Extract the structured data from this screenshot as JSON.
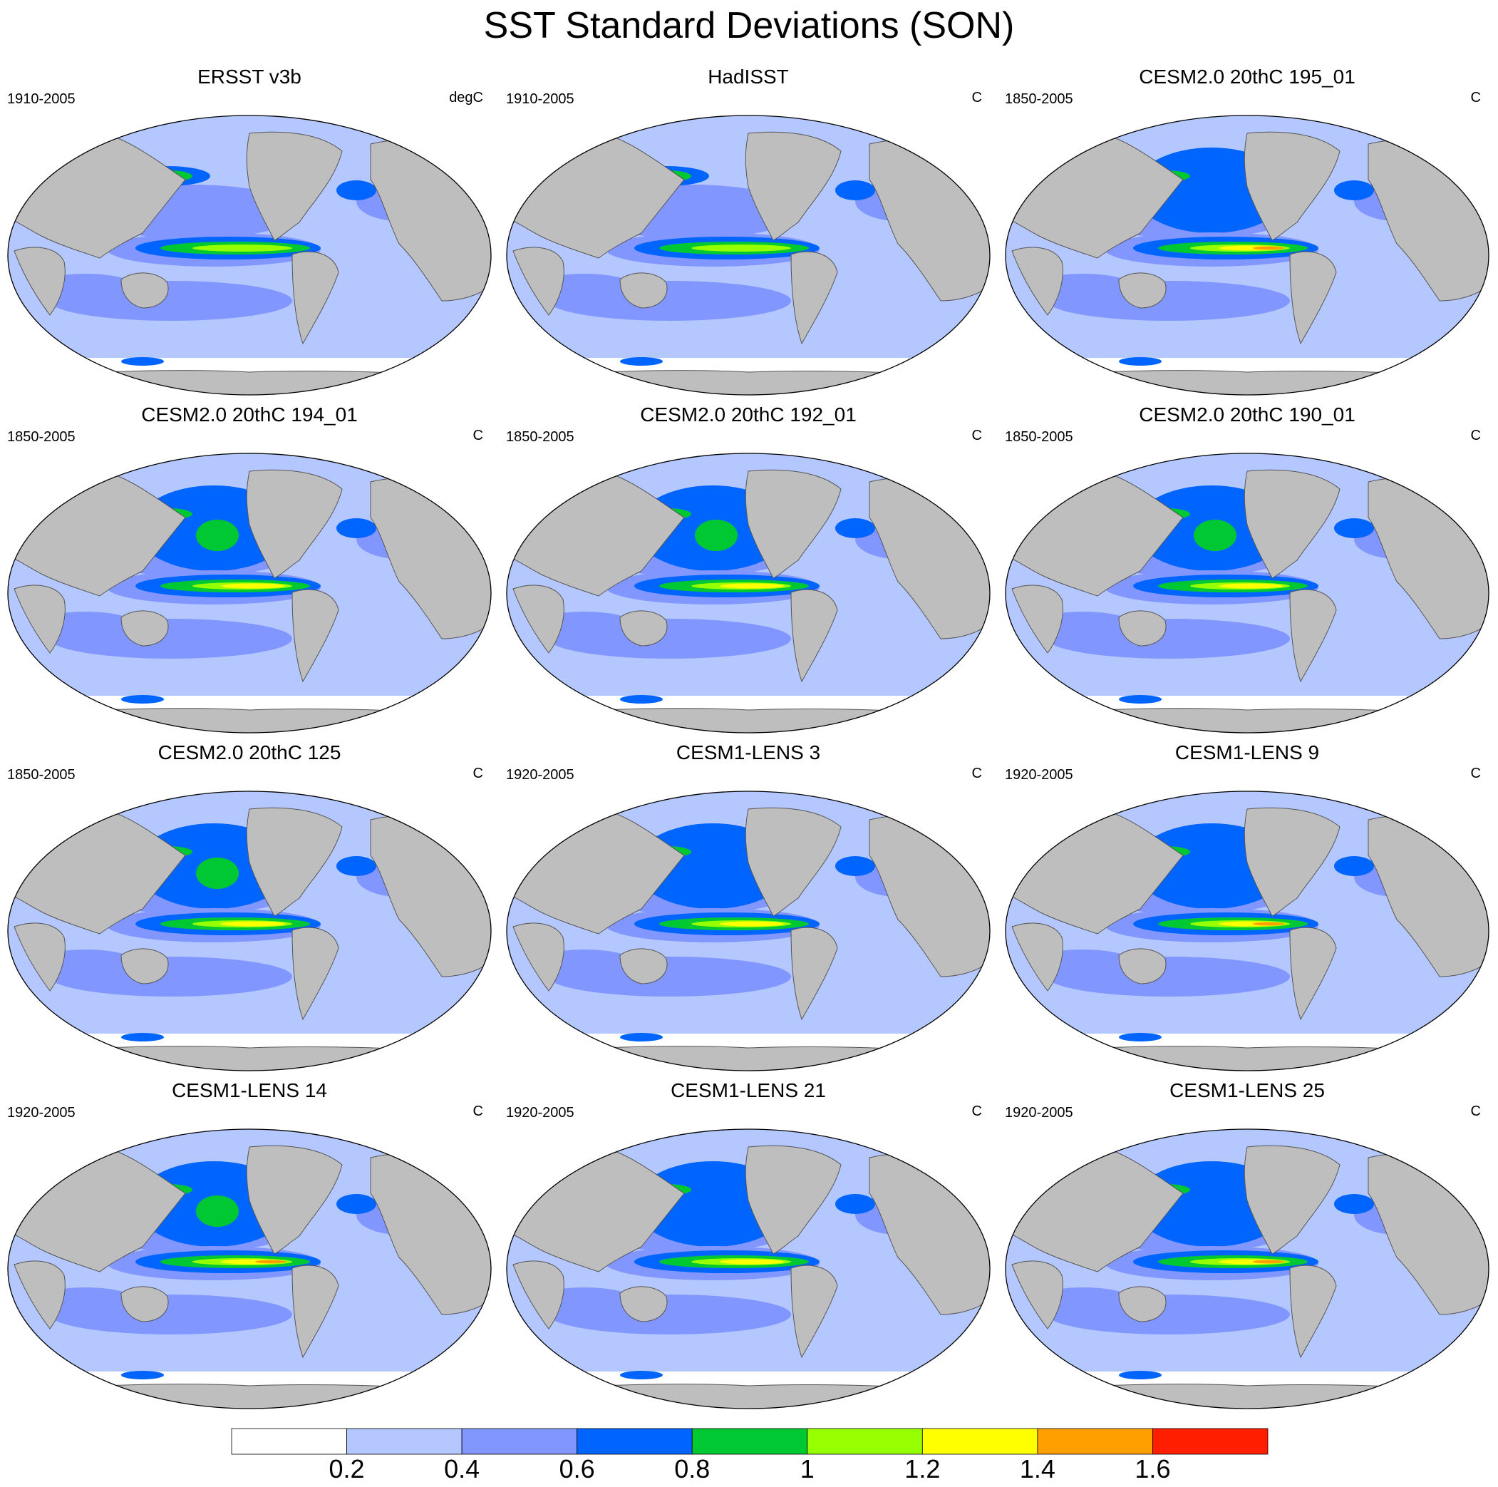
{
  "title": "SST Standard Deviations (SON)",
  "colors": {
    "land": "#bebebe",
    "levels": [
      "#ffffff",
      "#b4c8ff",
      "#8296ff",
      "#0064ff",
      "#00c832",
      "#96ff00",
      "#ffff00",
      "#ffa000",
      "#ff1e00"
    ]
  },
  "panels": [
    {
      "title": "ERSST v3b",
      "period": "1910-2005",
      "units": "degC",
      "nino": 2,
      "north": 1,
      "south": 1
    },
    {
      "title": "HadISST",
      "period": "1910-2005",
      "units": "C",
      "nino": 2,
      "north": 1,
      "south": 1
    },
    {
      "title": "CESM2.0 20thC 195_01",
      "period": "1850-2005",
      "units": "C",
      "nino": 4,
      "north": 2,
      "south": 1
    },
    {
      "title": "CESM2.0 20thC 194_01",
      "period": "1850-2005",
      "units": "C",
      "nino": 3,
      "north": 3,
      "south": 1
    },
    {
      "title": "CESM2.0 20thC 192_01",
      "period": "1850-2005",
      "units": "C",
      "nino": 3,
      "north": 3,
      "south": 1
    },
    {
      "title": "CESM2.0 20thC 190_01",
      "period": "1850-2005",
      "units": "C",
      "nino": 3,
      "north": 3,
      "south": 1
    },
    {
      "title": "CESM2.0 20thC 125",
      "period": "1850-2005",
      "units": "C",
      "nino": 3,
      "north": 3,
      "south": 1
    },
    {
      "title": "CESM1-LENS 3",
      "period": "1920-2005",
      "units": "C",
      "nino": 3,
      "north": 2,
      "south": 1
    },
    {
      "title": "CESM1-LENS 9",
      "period": "1920-2005",
      "units": "C",
      "nino": 4,
      "north": 2,
      "south": 1
    },
    {
      "title": "CESM1-LENS 14",
      "period": "1920-2005",
      "units": "C",
      "nino": 4,
      "north": 3,
      "south": 1
    },
    {
      "title": "CESM1-LENS 21",
      "period": "1920-2005",
      "units": "C",
      "nino": 3,
      "north": 2,
      "south": 1
    },
    {
      "title": "CESM1-LENS 25",
      "period": "1920-2005",
      "units": "C",
      "nino": 4,
      "north": 2,
      "south": 1
    }
  ],
  "colorbar": {
    "labels": [
      "0.2",
      "0.4",
      "0.6",
      "0.8",
      "1",
      "1.2",
      "1.4",
      "1.6"
    ]
  }
}
